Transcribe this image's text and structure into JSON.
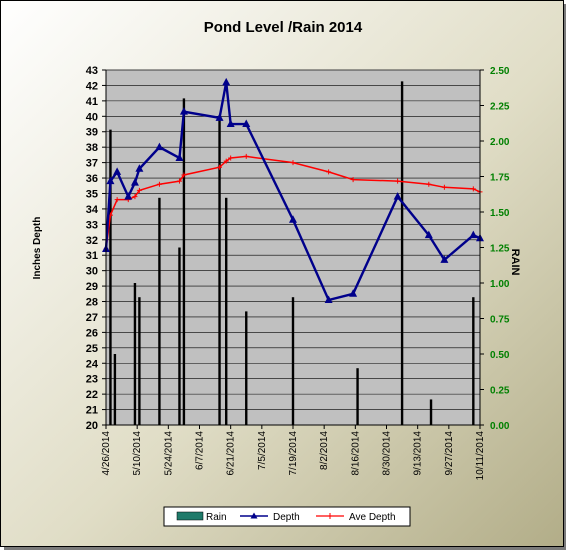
{
  "chart_data": {
    "type": "bar+line",
    "title": "Pond Level /Rain 2014",
    "ylabel_left": "Inches Depth",
    "ylabel_right": "RAIN",
    "y_left_range": [
      20,
      43
    ],
    "y_left_ticks": [
      "43",
      "42",
      "41",
      "40",
      "39",
      "38",
      "37",
      "36",
      "35",
      "34",
      "33",
      "32",
      "31",
      "30",
      "29",
      "28",
      "27",
      "26",
      "25",
      "24",
      "23",
      "22",
      "21",
      "20"
    ],
    "y_right_range": [
      0,
      2.5
    ],
    "y_right_ticks": [
      "2.50",
      "2.25",
      "2.00",
      "1.75",
      "1.50",
      "1.25",
      "1.00",
      "0.75",
      "0.50",
      "0.25",
      "0.00"
    ],
    "x_tick_labels": [
      "4/26/2014",
      "5/10/2014",
      "5/24/2014",
      "6/7/2014",
      "6/21/2014",
      "7/5/2014",
      "7/19/2014",
      "8/2/2014",
      "8/16/2014",
      "8/30/2014",
      "9/13/2014",
      "9/27/2014",
      "10/11/2014"
    ],
    "x_tick_days": [
      0,
      14,
      28,
      42,
      56,
      70,
      84,
      98,
      112,
      126,
      140,
      154,
      168
    ],
    "grid": "horizontal",
    "legend_position": "bottom",
    "legend": [
      "Rain",
      "Depth",
      "Ave Depth"
    ],
    "colors": {
      "background": "#c8c4a2",
      "plot_area": "#c0c0c0",
      "rain": "#000000",
      "rain_legend": "#1f7a6a",
      "depth": "#00008b",
      "ave_depth": "#ff0000",
      "right_axis": "#008000",
      "gridline": "#000000"
    },
    "series": [
      {
        "name": "Rain",
        "axis": "right",
        "points": [
          {
            "day": 2,
            "value": 2.08
          },
          {
            "day": 4,
            "value": 0.5
          },
          {
            "day": 13,
            "value": 1.0
          },
          {
            "day": 15,
            "value": 0.9
          },
          {
            "day": 24,
            "value": 1.6
          },
          {
            "day": 33,
            "value": 1.25
          },
          {
            "day": 35,
            "value": 2.3
          },
          {
            "day": 51,
            "value": 2.15
          },
          {
            "day": 54,
            "value": 1.6
          },
          {
            "day": 63,
            "value": 0.8
          },
          {
            "day": 84,
            "value": 0.9
          },
          {
            "day": 113,
            "value": 0.4
          },
          {
            "day": 133,
            "value": 2.42
          },
          {
            "day": 146,
            "value": 0.18
          },
          {
            "day": 165,
            "value": 0.9
          }
        ]
      },
      {
        "name": "Depth",
        "axis": "left",
        "points": [
          {
            "day": 0,
            "value": 31.4
          },
          {
            "day": 2,
            "value": 35.8
          },
          {
            "day": 5,
            "value": 36.4
          },
          {
            "day": 10,
            "value": 34.8
          },
          {
            "day": 13,
            "value": 35.7
          },
          {
            "day": 15,
            "value": 36.6
          },
          {
            "day": 24,
            "value": 38.0
          },
          {
            "day": 33,
            "value": 37.3
          },
          {
            "day": 35,
            "value": 40.3
          },
          {
            "day": 51,
            "value": 39.9
          },
          {
            "day": 54,
            "value": 42.2
          },
          {
            "day": 56,
            "value": 39.5
          },
          {
            "day": 63,
            "value": 39.5
          },
          {
            "day": 84,
            "value": 33.3
          },
          {
            "day": 100,
            "value": 28.1
          },
          {
            "day": 111,
            "value": 28.5
          },
          {
            "day": 131,
            "value": 34.8
          },
          {
            "day": 145,
            "value": 32.3
          },
          {
            "day": 152,
            "value": 30.7
          },
          {
            "day": 165,
            "value": 32.3
          },
          {
            "day": 168,
            "value": 32.1
          }
        ]
      },
      {
        "name": "Ave Depth",
        "axis": "left",
        "points": [
          {
            "day": 0,
            "value": 31.4
          },
          {
            "day": 2,
            "value": 33.6
          },
          {
            "day": 5,
            "value": 34.6
          },
          {
            "day": 10,
            "value": 34.6
          },
          {
            "day": 13,
            "value": 34.8
          },
          {
            "day": 15,
            "value": 35.2
          },
          {
            "day": 24,
            "value": 35.6
          },
          {
            "day": 33,
            "value": 35.8
          },
          {
            "day": 35,
            "value": 36.2
          },
          {
            "day": 51,
            "value": 36.7
          },
          {
            "day": 54,
            "value": 37.1
          },
          {
            "day": 56,
            "value": 37.3
          },
          {
            "day": 63,
            "value": 37.4
          },
          {
            "day": 84,
            "value": 37.0
          },
          {
            "day": 100,
            "value": 36.4
          },
          {
            "day": 111,
            "value": 35.9
          },
          {
            "day": 131,
            "value": 35.8
          },
          {
            "day": 145,
            "value": 35.6
          },
          {
            "day": 152,
            "value": 35.4
          },
          {
            "day": 165,
            "value": 35.3
          },
          {
            "day": 168,
            "value": 35.1
          }
        ]
      }
    ]
  }
}
